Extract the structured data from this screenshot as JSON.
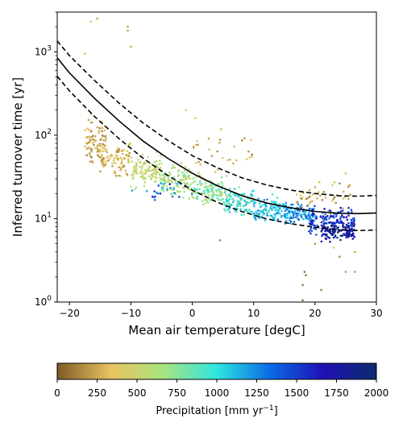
{
  "chart_data": {
    "type": "scatter",
    "xlabel": "Mean air temperature [degC]",
    "ylabel": "Inferred turnover time [yr]",
    "xlim": [
      -22,
      30
    ],
    "ylim": [
      1,
      3000
    ],
    "yscale": "log",
    "x_ticks": [
      -20,
      -10,
      0,
      10,
      20,
      30
    ],
    "x_tick_labels": [
      "−20",
      "−10",
      "0",
      "10",
      "20",
      "30"
    ],
    "y_ticks": [
      1,
      10,
      100,
      1000
    ],
    "y_tick_labels": [
      "10^0",
      "10^1",
      "10^2",
      "10^3"
    ],
    "grid": false,
    "colorbar": {
      "label_main": "Precipitation [mm yr",
      "label_exp": "−1",
      "label_end": "]",
      "range": [
        0,
        2000
      ],
      "ticks": [
        0,
        250,
        500,
        750,
        1000,
        1250,
        1500,
        1750,
        2000
      ],
      "colormap": [
        "#7d5b27",
        "#e9c35f",
        "#a8e47f",
        "#2ee6e0",
        "#0a6be6",
        "#1f10b5",
        "#0c2c6d"
      ]
    },
    "lines": [
      {
        "style": "solid",
        "color": "#000000",
        "x": [
          -22,
          -20,
          -16,
          -12,
          -8,
          -4,
          0,
          4,
          8,
          12,
          16,
          20,
          24,
          27,
          30
        ],
        "y": [
          850,
          560,
          280,
          150,
          85,
          53,
          35,
          25,
          19,
          15.5,
          13.5,
          12.2,
          11.6,
          11.5,
          11.7
        ]
      },
      {
        "style": "dashed",
        "color": "#000000",
        "x": [
          -22,
          -20,
          -16,
          -12,
          -8,
          -4,
          0,
          4,
          8,
          12,
          16,
          20,
          24,
          27,
          30
        ],
        "y": [
          1350,
          900,
          460,
          245,
          140,
          87,
          57,
          41,
          31,
          25.5,
          22,
          20,
          18.8,
          18.6,
          19
        ]
      },
      {
        "style": "dashed",
        "color": "#000000",
        "x": [
          -22,
          -20,
          -16,
          -12,
          -8,
          -4,
          0,
          4,
          8,
          12,
          16,
          20,
          24,
          27,
          30
        ],
        "y": [
          510,
          340,
          170,
          92,
          53,
          33,
          22,
          15.8,
          12.2,
          10,
          8.7,
          7.9,
          7.3,
          7.2,
          7.3
        ]
      }
    ],
    "scatter_clusters": [
      {
        "x": [
          -17.5,
          -14
        ],
        "y_center": 80,
        "spread": 0.14,
        "n": 90,
        "precip": [
          100,
          400
        ]
      },
      {
        "x": [
          -15,
          -10
        ],
        "y_center": 52,
        "spread": 0.09,
        "n": 90,
        "precip": [
          150,
          450
        ]
      },
      {
        "x": [
          -10,
          -5
        ],
        "y_center": 38,
        "spread": 0.09,
        "n": 110,
        "precip": [
          400,
          700
        ]
      },
      {
        "x": [
          -5,
          0
        ],
        "y_center": 28,
        "spread": 0.09,
        "n": 110,
        "precip": [
          450,
          800
        ]
      },
      {
        "x": [
          0,
          5
        ],
        "y_center": 21,
        "spread": 0.08,
        "n": 110,
        "precip": [
          550,
          950
        ]
      },
      {
        "x": [
          5,
          10
        ],
        "y_center": 16,
        "spread": 0.07,
        "n": 110,
        "precip": [
          700,
          1150
        ]
      },
      {
        "x": [
          10,
          15
        ],
        "y_center": 13,
        "spread": 0.06,
        "n": 110,
        "precip": [
          900,
          1300
        ]
      },
      {
        "x": [
          15,
          20
        ],
        "y_center": 11.5,
        "spread": 0.06,
        "n": 110,
        "precip": [
          1000,
          1450
        ]
      },
      {
        "x": [
          19,
          26.5
        ],
        "y_center": 9.5,
        "spread": 0.08,
        "n": 140,
        "precip": [
          1300,
          1700
        ]
      },
      {
        "x": [
          21,
          26.5
        ],
        "y_center": 7,
        "spread": 0.05,
        "n": 110,
        "precip": [
          1600,
          2000
        ]
      },
      {
        "x": [
          17,
          26
        ],
        "y_center": 20,
        "spread": 0.08,
        "n": 45,
        "precip": [
          100,
          400
        ]
      },
      {
        "x": [
          -10,
          0
        ],
        "y_center": 22,
        "spread": 0.06,
        "n": 25,
        "precip": [
          1100,
          1700
        ]
      },
      {
        "x": [
          0,
          10
        ],
        "y_center": 60,
        "spread": 0.15,
        "n": 35,
        "precip": [
          100,
          450
        ]
      }
    ],
    "scatter_outliers": [
      {
        "x": -16.5,
        "y": 2300,
        "p": 300
      },
      {
        "x": -15.5,
        "y": 2500,
        "p": 250
      },
      {
        "x": -10.5,
        "y": 2000,
        "p": 200
      },
      {
        "x": -10.5,
        "y": 1800,
        "p": 220
      },
      {
        "x": -10,
        "y": 1150,
        "p": 260
      },
      {
        "x": -17.5,
        "y": 950,
        "p": 300
      },
      {
        "x": -1,
        "y": 200,
        "p": 350
      },
      {
        "x": 0.5,
        "y": 160,
        "p": 400
      },
      {
        "x": 4.5,
        "y": 5.5,
        "p": 150
      },
      {
        "x": 18.3,
        "y": 2.3,
        "p": 50
      },
      {
        "x": 18.5,
        "y": 2.1,
        "p": 80
      },
      {
        "x": 18,
        "y": 1.6,
        "p": 60
      },
      {
        "x": 18,
        "y": 1.05,
        "p": 50
      },
      {
        "x": 21,
        "y": 1.4,
        "p": 100
      },
      {
        "x": 20,
        "y": 5,
        "p": 200
      },
      {
        "x": 24,
        "y": 3.5,
        "p": 150
      },
      {
        "x": 25,
        "y": 2.3,
        "p": 200
      },
      {
        "x": 26.5,
        "y": 4,
        "p": 250
      },
      {
        "x": 26.5,
        "y": 2.3,
        "p": 200
      },
      {
        "x": 23,
        "y": 4.5,
        "p": 400
      },
      {
        "x": 25,
        "y": 35,
        "p": 300
      },
      {
        "x": 25.5,
        "y": 25,
        "p": 350
      }
    ]
  }
}
